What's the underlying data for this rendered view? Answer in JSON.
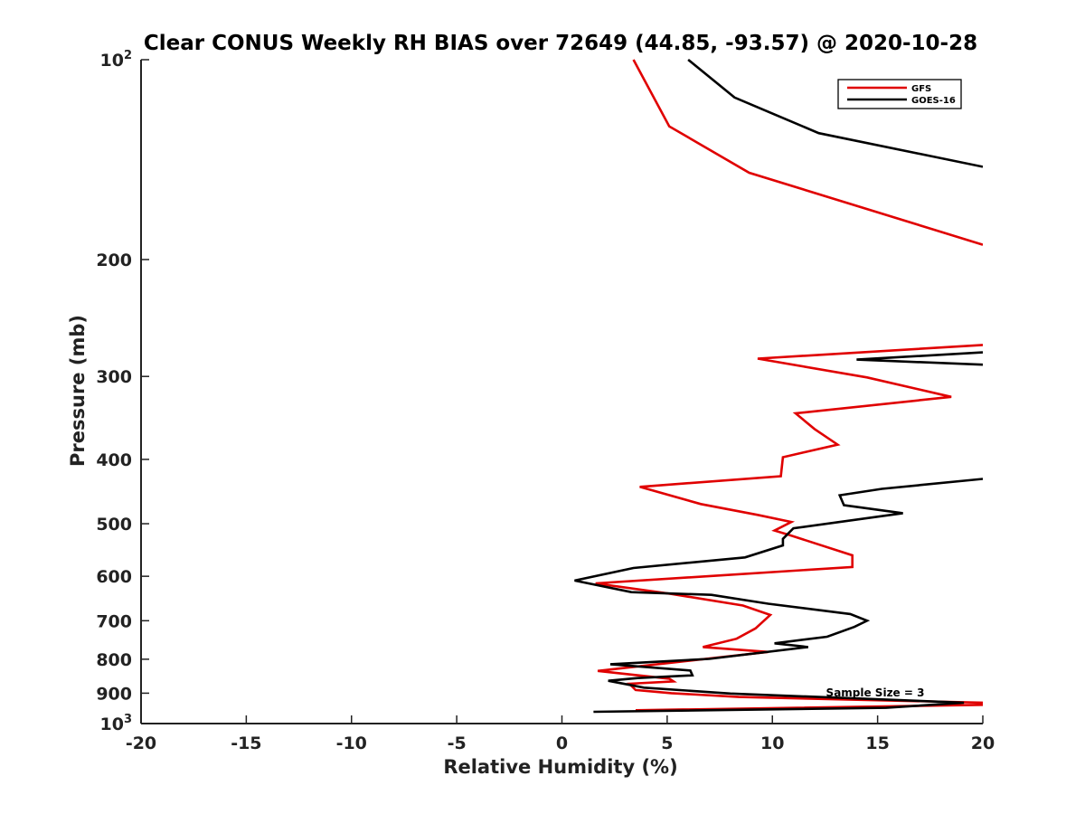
{
  "chart_data": {
    "type": "line",
    "title": "Clear CONUS Weekly RH BIAS over 72649 (44.85, -93.57) @ 2020-10-28",
    "xlabel": "Relative Humidity (%)",
    "ylabel": "Pressure (mb)",
    "xlim": [
      -20,
      20
    ],
    "ylim": [
      100,
      1000
    ],
    "y_scale": "log",
    "y_reversed": true,
    "grid": false,
    "legend_position": "top-right",
    "x_ticks": [
      "-20",
      "-15",
      "-10",
      "-5",
      "0",
      "5",
      "10",
      "15",
      "20"
    ],
    "y_ticks": [
      {
        "value": 100,
        "base": "10",
        "sup": "2"
      },
      {
        "value": 200,
        "base": "200",
        "sup": ""
      },
      {
        "value": 300,
        "base": "300",
        "sup": ""
      },
      {
        "value": 400,
        "base": "400",
        "sup": ""
      },
      {
        "value": 500,
        "base": "500",
        "sup": ""
      },
      {
        "value": 600,
        "base": "600",
        "sup": ""
      },
      {
        "value": 700,
        "base": "700",
        "sup": ""
      },
      {
        "value": 800,
        "base": "800",
        "sup": ""
      },
      {
        "value": 900,
        "base": "900",
        "sup": ""
      },
      {
        "value": 1000,
        "base": "10",
        "sup": "3"
      }
    ],
    "annotation": "Sample Size = 3",
    "series": [
      {
        "name": "GFS",
        "color": "#e00000",
        "points": [
          [
            3.4,
            100
          ],
          [
            5.1,
            126
          ],
          [
            8.9,
            148
          ],
          [
            20,
            190
          ],
          [
            null,
            null
          ],
          [
            20,
            269
          ],
          [
            9.3,
            282
          ],
          [
            14.5,
            301
          ],
          [
            18.5,
            322
          ],
          [
            11.1,
            341
          ],
          [
            12.0,
            360
          ],
          [
            13.1,
            380
          ],
          [
            10.5,
            397
          ],
          [
            10.4,
            424
          ],
          [
            3.7,
            440
          ],
          [
            6.6,
            467
          ],
          [
            9.3,
            485
          ],
          [
            10.9,
            497
          ],
          [
            10.1,
            512
          ],
          [
            10.8,
            520
          ],
          [
            13.8,
            558
          ],
          [
            13.8,
            581
          ],
          [
            1.6,
            615
          ],
          [
            5.2,
            638
          ],
          [
            8.6,
            664
          ],
          [
            9.9,
            686
          ],
          [
            9.2,
            719
          ],
          [
            8.3,
            745
          ],
          [
            6.7,
            767
          ],
          [
            9.8,
            780
          ],
          [
            1.7,
            833
          ],
          [
            5.1,
            856
          ],
          [
            5.3,
            864
          ],
          [
            3.2,
            871
          ],
          [
            3.5,
            890
          ],
          [
            5.2,
            900
          ],
          [
            8.4,
            912
          ],
          [
            20,
            930
          ],
          [
            null,
            null
          ],
          [
            20,
            937
          ],
          [
            3.5,
            955
          ]
        ]
      },
      {
        "name": "GOES-16",
        "color": "#000000",
        "points": [
          [
            6.0,
            100
          ],
          [
            8.2,
            114
          ],
          [
            12.2,
            129
          ],
          [
            20,
            145
          ],
          [
            null,
            null
          ],
          [
            20,
            276
          ],
          [
            14.0,
            283
          ],
          [
            20,
            288
          ],
          [
            null,
            null
          ],
          [
            20,
            428
          ],
          [
            15.2,
            443
          ],
          [
            13.2,
            453
          ],
          [
            13.4,
            469
          ],
          [
            16.2,
            482
          ],
          [
            11.0,
            508
          ],
          [
            10.5,
            527
          ],
          [
            10.5,
            539
          ],
          [
            8.7,
            562
          ],
          [
            3.4,
            583
          ],
          [
            0.6,
            609
          ],
          [
            3.3,
            634
          ],
          [
            7.1,
            640
          ],
          [
            9.8,
            660
          ],
          [
            13.7,
            684
          ],
          [
            14.5,
            700
          ],
          [
            13.9,
            715
          ],
          [
            12.6,
            740
          ],
          [
            10.1,
            757
          ],
          [
            11.7,
            767
          ],
          [
            7.0,
            799
          ],
          [
            2.3,
            814
          ],
          [
            6.1,
            832
          ],
          [
            6.2,
            846
          ],
          [
            3.6,
            854
          ],
          [
            2.2,
            862
          ],
          [
            3.9,
            883
          ],
          [
            8.0,
            901
          ],
          [
            19.1,
            930
          ],
          [
            15.4,
            947
          ],
          [
            1.5,
            960
          ]
        ]
      }
    ]
  }
}
